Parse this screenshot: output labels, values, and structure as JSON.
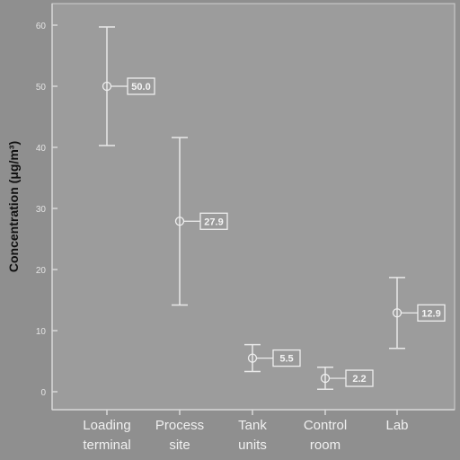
{
  "chart_data": {
    "type": "scatter",
    "title": "",
    "ylabel": "Concentration (μg/m³)",
    "xlabel": "",
    "ylim": [
      0,
      60
    ],
    "yticks": [
      0,
      10,
      20,
      30,
      40,
      50,
      60
    ],
    "grid": false,
    "categories": [
      {
        "lines": [
          "Loading",
          "terminal"
        ],
        "mean": 50.0,
        "lower": 40.3,
        "upper": 59.7,
        "label": "50.0"
      },
      {
        "lines": [
          "Process",
          "site"
        ],
        "mean": 27.9,
        "lower": 14.2,
        "upper": 41.6,
        "label": "27.9"
      },
      {
        "lines": [
          "Tank",
          "units"
        ],
        "mean": 5.5,
        "lower": 3.3,
        "upper": 7.7,
        "label": "5.5"
      },
      {
        "lines": [
          "Control",
          "room"
        ],
        "mean": 2.2,
        "lower": 0.4,
        "upper": 4.0,
        "label": "2.2"
      },
      {
        "lines": [
          "Lab"
        ],
        "mean": 12.9,
        "lower": 7.1,
        "upper": 18.7,
        "label": "12.9"
      }
    ]
  },
  "colors": {
    "outer_background": "#8f8f8f",
    "plot_background": "#9c9c9c",
    "foreground": "#e8e8e8"
  }
}
